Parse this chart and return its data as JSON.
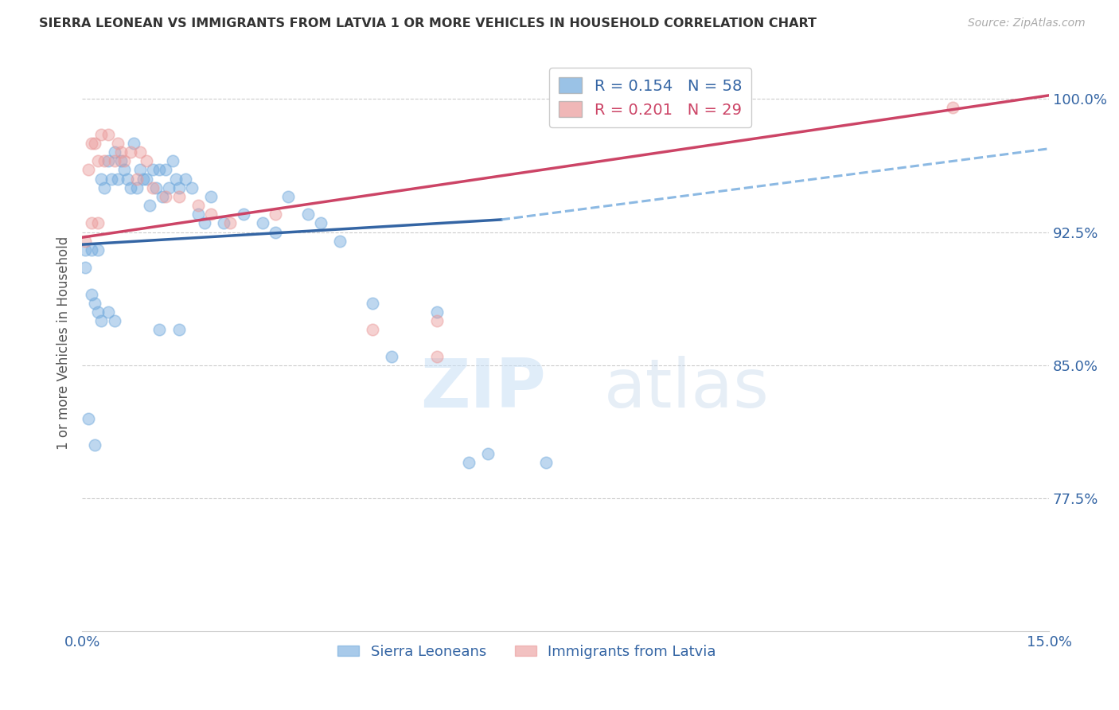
{
  "title": "SIERRA LEONEAN VS IMMIGRANTS FROM LATVIA 1 OR MORE VEHICLES IN HOUSEHOLD CORRELATION CHART",
  "source": "Source: ZipAtlas.com",
  "xlabel_ticks": [
    "0.0%",
    "15.0%"
  ],
  "xlabel_vals": [
    0.0,
    15.0
  ],
  "ylabel_label": "1 or more Vehicles in Household",
  "ylabel_show": [
    77.5,
    85.0,
    92.5,
    100.0
  ],
  "ylabel_grid": [
    77.5,
    85.0,
    92.5,
    100.0
  ],
  "xmin": 0.0,
  "xmax": 15.0,
  "ymin": 70.0,
  "ymax": 102.5,
  "legend_blue_r": "R = 0.154",
  "legend_blue_n": "N = 58",
  "legend_pink_r": "R = 0.201",
  "legend_pink_n": "N = 29",
  "legend_label_blue": "Sierra Leoneans",
  "legend_label_pink": "Immigrants from Latvia",
  "blue_color": "#6fa8dc",
  "pink_color": "#ea9999",
  "trendline_blue_color": "#3465a4",
  "trendline_pink_color": "#cc4466",
  "dashed_line_color": "#6fa8dc",
  "blue_scatter_x": [
    0.1,
    0.15,
    0.2,
    0.25,
    0.3,
    0.35,
    0.4,
    0.45,
    0.5,
    0.55,
    0.6,
    0.65,
    0.7,
    0.75,
    0.8,
    0.85,
    0.9,
    0.95,
    1.0,
    1.05,
    1.1,
    1.15,
    1.2,
    1.25,
    1.3,
    1.35,
    1.4,
    1.45,
    1.5,
    1.6,
    1.7,
    1.8,
    1.9,
    2.0,
    2.2,
    2.5,
    2.8,
    3.0,
    3.2,
    3.5,
    3.7,
    4.0,
    4.5,
    4.8,
    5.5,
    6.0,
    6.3,
    7.2,
    0.05,
    0.05,
    0.15,
    0.2,
    0.25,
    0.3,
    0.4,
    0.5,
    1.2,
    1.5
  ],
  "blue_scatter_y": [
    82.0,
    91.5,
    80.5,
    91.5,
    95.5,
    95.0,
    96.5,
    95.5,
    97.0,
    95.5,
    96.5,
    96.0,
    95.5,
    95.0,
    97.5,
    95.0,
    96.0,
    95.5,
    95.5,
    94.0,
    96.0,
    95.0,
    96.0,
    94.5,
    96.0,
    95.0,
    96.5,
    95.5,
    95.0,
    95.5,
    95.0,
    93.5,
    93.0,
    94.5,
    93.0,
    93.5,
    93.0,
    92.5,
    94.5,
    93.5,
    93.0,
    92.0,
    88.5,
    85.5,
    88.0,
    79.5,
    80.0,
    79.5,
    91.5,
    90.5,
    89.0,
    88.5,
    88.0,
    87.5,
    88.0,
    87.5,
    87.0,
    87.0
  ],
  "pink_scatter_x": [
    0.1,
    0.15,
    0.2,
    0.25,
    0.3,
    0.35,
    0.4,
    0.5,
    0.55,
    0.6,
    0.65,
    0.75,
    0.85,
    0.9,
    1.0,
    1.1,
    1.3,
    1.5,
    1.8,
    2.0,
    2.3,
    3.0,
    4.5,
    5.5,
    0.05,
    0.15,
    0.25,
    13.5,
    5.5
  ],
  "pink_scatter_y": [
    96.0,
    97.5,
    97.5,
    96.5,
    98.0,
    96.5,
    98.0,
    96.5,
    97.5,
    97.0,
    96.5,
    97.0,
    95.5,
    97.0,
    96.5,
    95.0,
    94.5,
    94.5,
    94.0,
    93.5,
    93.0,
    93.5,
    87.0,
    87.5,
    92.0,
    93.0,
    93.0,
    99.5,
    85.5
  ],
  "blue_trend_x": [
    0.0,
    6.5
  ],
  "blue_trend_y": [
    91.8,
    93.2
  ],
  "pink_trend_x": [
    0.0,
    15.0
  ],
  "pink_trend_y": [
    92.2,
    100.2
  ],
  "dashed_trend_x": [
    6.5,
    15.0
  ],
  "dashed_trend_y": [
    93.2,
    97.2
  ],
  "watermark_zip": "ZIP",
  "watermark_atlas": "atlas",
  "background_color": "#ffffff",
  "grid_color": "#cccccc"
}
